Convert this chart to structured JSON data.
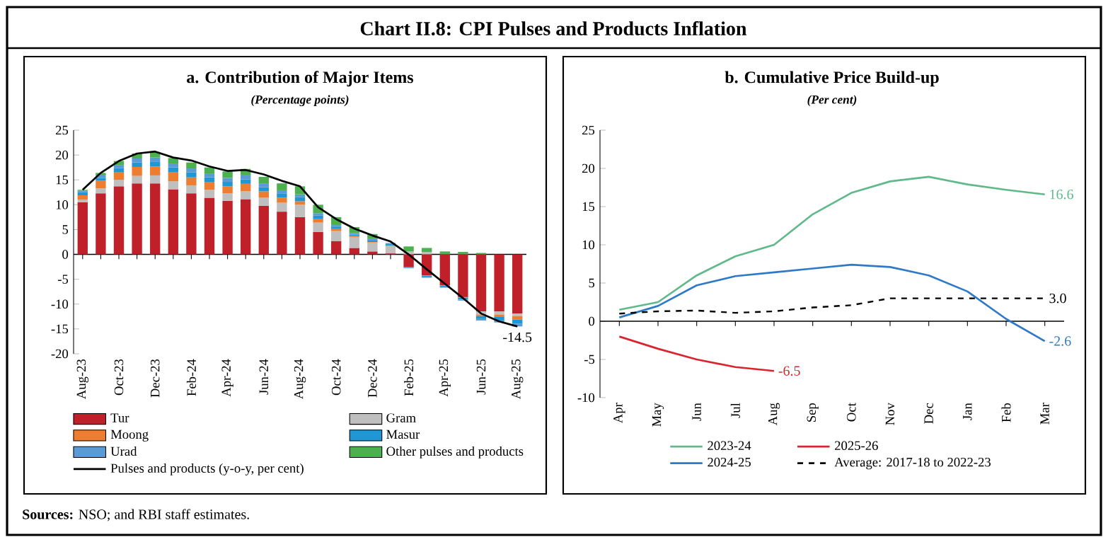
{
  "chart_data": [
    {
      "type": "bar",
      "stacked": true,
      "title": "a. Contribution of Major Items",
      "subtitle": "(Percentage points)",
      "categories": [
        "Aug-23",
        null,
        "Oct-23",
        null,
        "Dec-23",
        null,
        "Feb-24",
        null,
        "Apr-24",
        null,
        "Jun-24",
        null,
        "Aug-24",
        null,
        "Oct-24",
        null,
        "Dec-24",
        null,
        "Feb-25",
        null,
        "Apr-25",
        null,
        "Jun-25",
        null,
        "Aug-25"
      ],
      "ylim": [
        -20,
        25
      ],
      "yticks": [
        -20,
        -15,
        -10,
        -5,
        0,
        5,
        10,
        15,
        20,
        25
      ],
      "legend": "bottom",
      "annotations": [
        "Chart II.8: CPI Pulses and Products Inflation",
        "**Sources:** NSO; and RBI staff estimates."
      ],
      "series": [
        {
          "name": "Tur",
          "color": "#c0202a",
          "values": [
            10.5,
            12.3,
            13.7,
            14.3,
            14.3,
            13.1,
            12.3,
            11.4,
            10.8,
            11.1,
            9.8,
            8.6,
            7.5,
            4.5,
            2.7,
            1.3,
            0.6,
            0.2,
            -2.5,
            -4.2,
            -6.2,
            -8.6,
            -11.5,
            -11.5,
            -11.9
          ]
        },
        {
          "name": "Gram",
          "color": "#bfbfbf",
          "values": [
            0.5,
            1.0,
            1.3,
            1.5,
            1.6,
            1.6,
            1.6,
            1.6,
            1.5,
            1.6,
            1.6,
            1.8,
            2.5,
            1.9,
            2.0,
            2.2,
            1.8,
            1.5,
            0.6,
            0.5,
            null,
            null,
            -0.6,
            -0.6,
            -0.5
          ]
        },
        {
          "name": "Moong",
          "color": "#ed7d31",
          "values": [
            0.9,
            1.5,
            1.6,
            1.8,
            1.8,
            1.8,
            1.6,
            1.5,
            1.4,
            1.5,
            1.3,
            1.0,
            0.7,
            0.7,
            0.5,
            0.2,
            0.1,
            0.1,
            0.0,
            -0.1,
            -0.1,
            -0.1,
            -0.3,
            -0.5,
            -0.7
          ]
        },
        {
          "name": "Masur",
          "color": "#1f97d4",
          "values": [
            0.6,
            0.6,
            0.8,
            0.9,
            1.0,
            1.0,
            1.0,
            1.0,
            0.9,
            0.9,
            0.8,
            0.8,
            0.8,
            0.7,
            0.4,
            0.3,
            0.4,
            0.3,
            -0.2,
            -0.3,
            -0.3,
            -0.4,
            -0.6,
            -0.7,
            -0.8
          ]
        },
        {
          "name": "Urad",
          "color": "#5b9bd5",
          "values": [
            0.3,
            0.5,
            0.6,
            0.8,
            0.8,
            0.8,
            0.8,
            0.8,
            0.8,
            0.8,
            0.8,
            0.7,
            0.6,
            0.5,
            0.3,
            0.3,
            0.3,
            0.2,
            -0.1,
            -0.1,
            -0.1,
            -0.2,
            -0.3,
            -0.4,
            -0.6
          ]
        },
        {
          "name": "Other pulses and products",
          "color": "#4caf50",
          "values": [
            0.2,
            0.5,
            0.8,
            1.0,
            1.1,
            1.1,
            1.2,
            1.2,
            1.3,
            1.3,
            1.3,
            1.4,
            1.6,
            1.7,
            1.6,
            1.2,
            0.9,
            null,
            1.0,
            0.8,
            0.6,
            0.5,
            0.3,
            0.0,
            0.0
          ]
        },
        {
          "name": "Pulses and products (y-o-y, per cent)",
          "type": "line",
          "color": "#000000",
          "values": [
            13.0,
            16.4,
            18.8,
            20.3,
            20.7,
            19.5,
            18.9,
            17.7,
            16.8,
            17.0,
            16.1,
            14.8,
            13.7,
            9.5,
            7.1,
            5.2,
            3.8,
            2.6,
            0.0,
            -3.0,
            -5.9,
            -8.8,
            -11.9,
            -13.5,
            -14.5
          ],
          "value_labels": [
            null,
            null,
            null,
            null,
            null,
            null,
            null,
            null,
            null,
            null,
            null,
            null,
            null,
            null,
            null,
            null,
            null,
            null,
            null,
            null,
            null,
            null,
            null,
            null,
            "-14.5"
          ]
        }
      ]
    },
    {
      "type": "line",
      "title": "b. Cumulative Price Build-up",
      "subtitle": "(Per cent)",
      "categories": [
        "Apr",
        "May",
        "Jun",
        "Jul",
        "Aug",
        "Sep",
        "Oct",
        "Nov",
        "Dec",
        "Jan",
        "Feb",
        "Mar"
      ],
      "ylim": [
        -10,
        25
      ],
      "yticks": [
        -10,
        -5,
        0,
        5,
        10,
        15,
        20,
        25
      ],
      "legend": "bottom",
      "series": [
        {
          "name": "2023-24",
          "color": "#5fb98b",
          "values": [
            1.5,
            2.5,
            6.0,
            8.5,
            10.0,
            14.0,
            16.8,
            18.3,
            18.9,
            17.9,
            17.2,
            16.6
          ],
          "value_labels": [
            null,
            null,
            null,
            null,
            null,
            null,
            null,
            null,
            null,
            null,
            null,
            "16.6"
          ]
        },
        {
          "name": "2025-26",
          "color": "#d9262e",
          "values": [
            -2.0,
            -3.6,
            -5.0,
            -6.0,
            -6.5,
            null,
            null,
            null,
            null,
            null,
            null,
            null
          ],
          "value_labels": [
            null,
            null,
            null,
            null,
            "-6.5",
            null,
            null,
            null,
            null,
            null,
            null,
            null
          ]
        },
        {
          "name": "2024-25",
          "color": "#2f7ac7",
          "values": [
            0.5,
            2.0,
            4.7,
            5.9,
            6.4,
            6.9,
            7.4,
            7.1,
            6.0,
            3.9,
            0.3,
            -2.6
          ],
          "value_labels": [
            null,
            null,
            null,
            null,
            null,
            null,
            null,
            null,
            null,
            null,
            null,
            "-2.6"
          ]
        },
        {
          "name": "Average: 2017-18 to 2022-23",
          "color": "#000000",
          "line_style": "dashed",
          "values": [
            1.0,
            1.3,
            1.4,
            1.1,
            1.3,
            1.8,
            2.1,
            3.0,
            3.0,
            3.0,
            3.0,
            3.0
          ],
          "value_labels": [
            null,
            null,
            null,
            null,
            null,
            null,
            null,
            null,
            null,
            null,
            null,
            "3.0"
          ]
        }
      ]
    }
  ]
}
